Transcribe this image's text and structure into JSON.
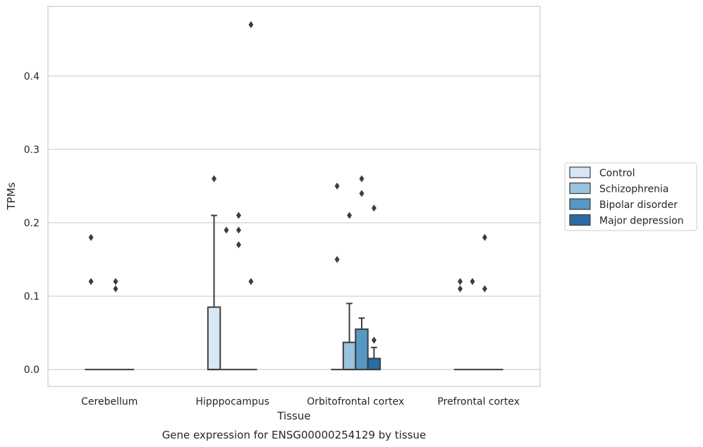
{
  "chart_data": {
    "type": "box",
    "xlabel": "Tissue",
    "ylabel": "TPMs",
    "caption": "Gene expression for ENSG00000254129 by tissue",
    "categories": [
      "Cerebellum",
      "Hipppocampus",
      "Orbitofrontal cortex",
      "Prefrontal cortex"
    ],
    "ylim": [
      -0.023,
      0.495
    ],
    "yticks": [
      0.0,
      0.1,
      0.2,
      0.3,
      0.4
    ],
    "ytick_labels": [
      "0.0",
      "0.1",
      "0.2",
      "0.3",
      "0.4"
    ],
    "grid": true,
    "legend_position": "right",
    "series": [
      {
        "name": "Control",
        "color": "#d9e6f3",
        "boxes": [
          {
            "q1": 0,
            "median": 0,
            "q3": 0,
            "whisker_low": 0,
            "whisker_high": 0,
            "outliers": [
              0.18,
              0.12
            ]
          },
          {
            "q1": 0,
            "median": 0,
            "q3": 0.085,
            "whisker_low": 0,
            "whisker_high": 0.21,
            "outliers": [
              0.26
            ]
          },
          {
            "q1": 0,
            "median": 0,
            "q3": 0,
            "whisker_low": 0,
            "whisker_high": 0,
            "outliers": [
              0.25,
              0.15
            ]
          },
          {
            "q1": 0,
            "median": 0,
            "q3": 0,
            "whisker_low": 0,
            "whisker_high": 0,
            "outliers": [
              0.12,
              0.11
            ]
          }
        ]
      },
      {
        "name": "Schizophrenia",
        "color": "#9ac3dd",
        "boxes": [
          {
            "q1": 0,
            "median": 0,
            "q3": 0,
            "whisker_low": 0,
            "whisker_high": 0,
            "outliers": []
          },
          {
            "q1": 0,
            "median": 0,
            "q3": 0,
            "whisker_low": 0,
            "whisker_high": 0,
            "outliers": [
              0.19
            ]
          },
          {
            "q1": 0,
            "median": 0,
            "q3": 0.037,
            "whisker_low": 0,
            "whisker_high": 0.09,
            "outliers": [
              0.21
            ]
          },
          {
            "q1": 0,
            "median": 0,
            "q3": 0,
            "whisker_low": 0,
            "whisker_high": 0,
            "outliers": [
              0.12
            ]
          }
        ]
      },
      {
        "name": "Bipolar disorder",
        "color": "#5797c4",
        "boxes": [
          {
            "q1": 0,
            "median": 0,
            "q3": 0,
            "whisker_low": 0,
            "whisker_high": 0,
            "outliers": [
              0.12,
              0.11
            ]
          },
          {
            "q1": 0,
            "median": 0,
            "q3": 0,
            "whisker_low": 0,
            "whisker_high": 0,
            "outliers": [
              0.21,
              0.19,
              0.17
            ]
          },
          {
            "q1": 0,
            "median": 0,
            "q3": 0.055,
            "whisker_low": 0,
            "whisker_high": 0.07,
            "outliers": [
              0.26,
              0.24
            ]
          },
          {
            "q1": 0,
            "median": 0,
            "q3": 0,
            "whisker_low": 0,
            "whisker_high": 0,
            "outliers": [
              0.18,
              0.11
            ]
          }
        ]
      },
      {
        "name": "Major depression",
        "color": "#2a6aa5",
        "boxes": [
          {
            "q1": 0,
            "median": 0,
            "q3": 0,
            "whisker_low": 0,
            "whisker_high": 0,
            "outliers": []
          },
          {
            "q1": 0,
            "median": 0,
            "q3": 0,
            "whisker_low": 0,
            "whisker_high": 0,
            "outliers": [
              0.47,
              0.12
            ]
          },
          {
            "q1": 0,
            "median": 0,
            "q3": 0.015,
            "whisker_low": 0,
            "whisker_high": 0.03,
            "outliers": [
              0.22,
              0.04
            ]
          },
          {
            "q1": 0,
            "median": 0,
            "q3": 0,
            "whisker_low": 0,
            "whisker_high": 0,
            "outliers": []
          }
        ]
      }
    ]
  }
}
